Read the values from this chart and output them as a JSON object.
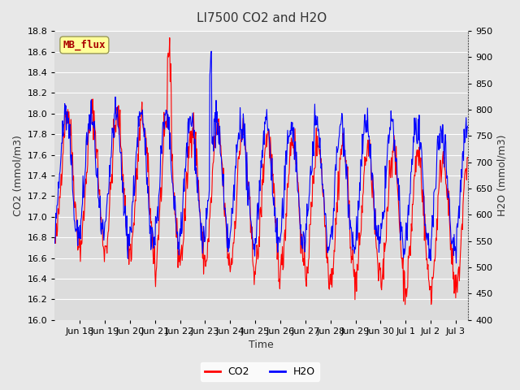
{
  "title": "LI7500 CO2 and H2O",
  "xlabel": "Time",
  "ylabel_left": "CO2 (mmol/m3)",
  "ylabel_right": "H2O (mmol/m3)",
  "co2_ylim": [
    16.0,
    18.8
  ],
  "h2o_ylim": [
    400,
    950
  ],
  "co2_yticks": [
    16.0,
    16.2,
    16.4,
    16.6,
    16.8,
    17.0,
    17.2,
    17.4,
    17.6,
    17.8,
    18.0,
    18.2,
    18.4,
    18.6,
    18.8
  ],
  "h2o_yticks": [
    400,
    450,
    500,
    550,
    600,
    650,
    700,
    750,
    800,
    850,
    900,
    950
  ],
  "xtick_labels": [
    "Jun 18",
    "Jun 19",
    "Jun 20",
    "Jun 21",
    "Jun 22",
    "Jun 23",
    "Jun 24",
    "Jun 25",
    "Jun 26",
    "Jun 27",
    "Jun 28",
    "Jun 29",
    "Jun 30",
    "Jul 1",
    "Jul 2",
    "Jul 3"
  ],
  "co2_color": "#FF0000",
  "h2o_color": "#0000FF",
  "line_width": 0.8,
  "bg_color": "#E8E8E8",
  "plot_bg_color": "#DCDCDC",
  "grid_color": "#FFFFFF",
  "annotation_text": "MB_flux",
  "annotation_bg": "#FFFF99",
  "annotation_fg": "#AA0000",
  "legend_co2": "CO2",
  "legend_h2o": "H2O"
}
